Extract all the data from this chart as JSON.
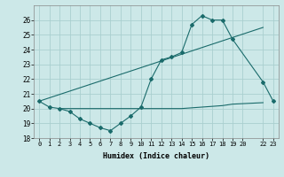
{
  "line1_x": [
    0,
    1,
    2,
    3,
    4,
    5,
    6,
    7,
    8,
    9,
    10,
    11,
    12,
    13,
    14,
    15,
    16,
    17,
    18,
    19,
    22,
    23
  ],
  "line1_y": [
    20.5,
    20.1,
    20.0,
    19.8,
    19.3,
    19.0,
    18.7,
    18.5,
    19.0,
    19.5,
    20.1,
    22.0,
    23.3,
    23.5,
    23.8,
    25.7,
    26.3,
    26.0,
    26.0,
    24.7,
    21.8,
    20.5
  ],
  "line2_x": [
    0,
    22
  ],
  "line2_y": [
    20.5,
    25.5
  ],
  "line3_x": [
    2,
    10,
    11,
    14,
    15,
    16,
    17,
    18,
    19,
    22
  ],
  "line3_y": [
    20.0,
    20.0,
    20.0,
    20.0,
    20.05,
    20.1,
    20.15,
    20.2,
    20.3,
    20.4
  ],
  "color": "#1a6b6b",
  "bg_color": "#cce8e8",
  "grid_color": "#aacfcf",
  "xlabel": "Humidex (Indice chaleur)",
  "ylim": [
    18,
    27
  ],
  "xlim": [
    -0.5,
    23.5
  ],
  "yticks": [
    18,
    19,
    20,
    21,
    22,
    23,
    24,
    25,
    26
  ],
  "xticks": [
    0,
    1,
    2,
    3,
    4,
    5,
    6,
    7,
    8,
    9,
    10,
    11,
    12,
    13,
    14,
    15,
    16,
    17,
    18,
    19,
    20,
    22,
    23
  ],
  "xtick_labels": [
    "0",
    "1",
    "2",
    "3",
    "4",
    "5",
    "6",
    "7",
    "8",
    "9",
    "10",
    "11",
    "12",
    "13",
    "14",
    "15",
    "16",
    "17",
    "18",
    "19",
    "20",
    "22",
    "23"
  ]
}
